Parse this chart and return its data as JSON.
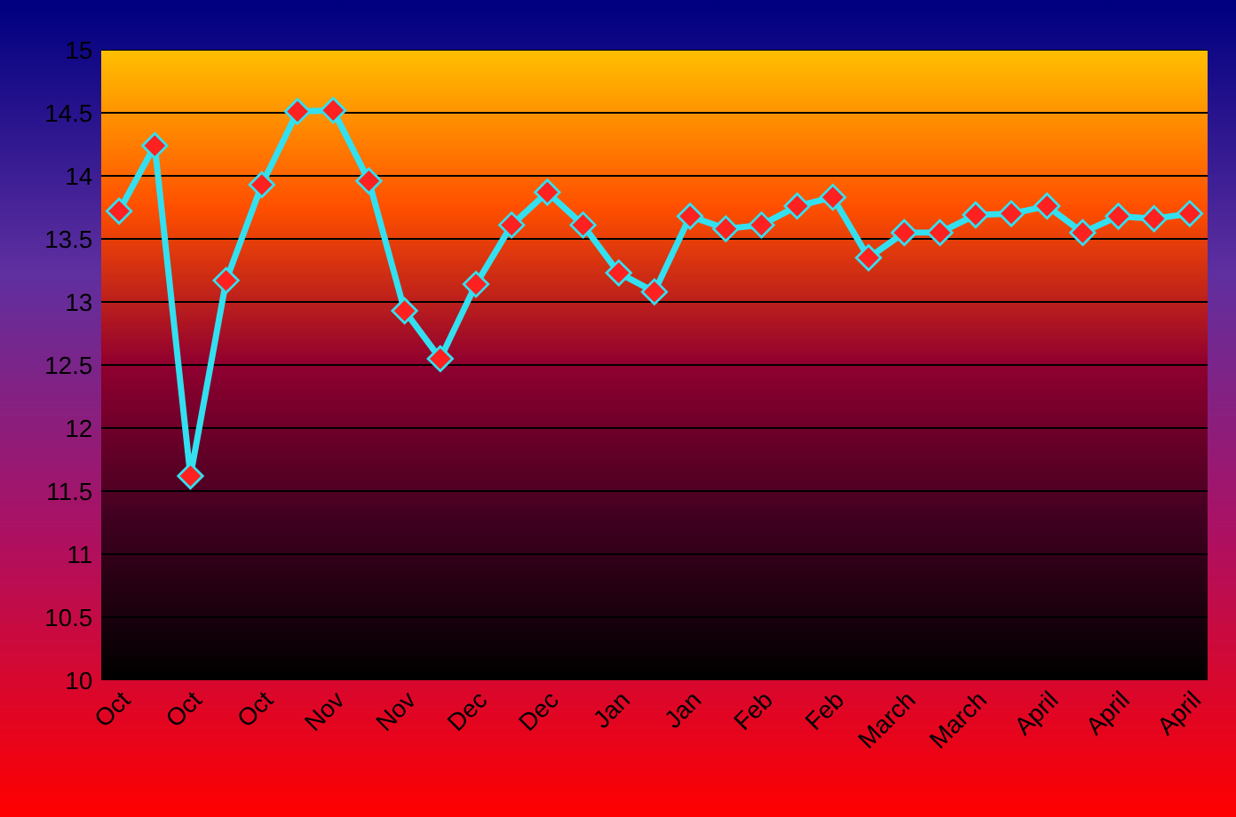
{
  "chart_data": {
    "type": "line",
    "categories": [
      "Oct",
      null,
      "Oct",
      null,
      "Oct",
      null,
      "Nov",
      null,
      "Nov",
      null,
      "Dec",
      null,
      "Dec",
      null,
      "Jan",
      null,
      "Jan",
      null,
      "Feb",
      null,
      "Feb",
      null,
      "March",
      null,
      "March",
      null,
      "April",
      null,
      "April",
      null,
      "April"
    ],
    "series": [
      {
        "color": "#33e0f0",
        "values": [
          13.72,
          14.24,
          11.62,
          13.17,
          13.93,
          14.51,
          14.52,
          13.96,
          12.93,
          12.55,
          13.14,
          13.61,
          13.87,
          13.61,
          13.23,
          13.08,
          13.68,
          13.58,
          13.61,
          13.76,
          13.83,
          13.35,
          13.55,
          13.55,
          13.69,
          13.7,
          13.76,
          13.55,
          13.68,
          13.66,
          13.7
        ]
      }
    ],
    "ylim": [
      10,
      15
    ],
    "yticks": [
      10,
      10.5,
      11,
      11.5,
      12,
      12.5,
      13,
      13.5,
      14,
      14.5,
      15
    ],
    "grid": "y",
    "marker": "diamond",
    "line_style": "solid"
  }
}
